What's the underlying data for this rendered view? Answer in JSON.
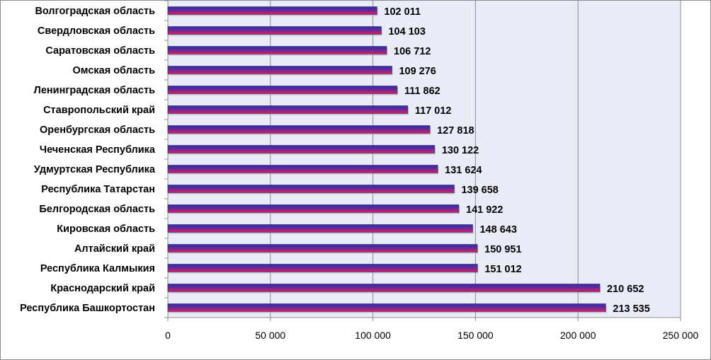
{
  "chart_data": {
    "type": "bar",
    "orientation": "horizontal",
    "title": "",
    "xlabel": "",
    "ylabel": "",
    "categories": [
      "Волгоградская область",
      "Свердловская область",
      "Саратовская  область",
      "Омская область",
      "Ленинградская область",
      "Ставропольский край",
      "Оренбургская область",
      "Чеченская Республика",
      "Удмуртская  Республика",
      "Республика Татарстан",
      "Белгородская область",
      "Кировская область",
      "Алтайский край",
      "Республика Калмыкия",
      "Краснодарский край",
      "Республика Башкортостан"
    ],
    "values": [
      102011,
      104103,
      106712,
      109276,
      111862,
      117012,
      127818,
      130122,
      131624,
      139658,
      141922,
      148643,
      150951,
      151012,
      210652,
      213535
    ],
    "value_labels": [
      "102 011",
      "104 103",
      "106 712",
      "109 276",
      "111 862",
      "117 012",
      "127 818",
      "130 122",
      "131 624",
      "139 658",
      "141 922",
      "148 643",
      "150 951",
      "151 012",
      "210 652",
      "213 535"
    ],
    "xlim": [
      0,
      250000
    ],
    "x_ticks": [
      0,
      50000,
      100000,
      150000,
      200000,
      250000
    ],
    "x_tick_labels": [
      "0",
      "50 000",
      "100 000",
      "150 000",
      "200 000",
      "250 000"
    ],
    "grid": "vertical",
    "legend": "none",
    "colors": {
      "plot_background": "#e9ecf6",
      "bar_top": "#2f2fa8",
      "bar_bottom": "#e8195a",
      "grid": "#8c8c8c",
      "axis": "#8c8c8c"
    }
  }
}
